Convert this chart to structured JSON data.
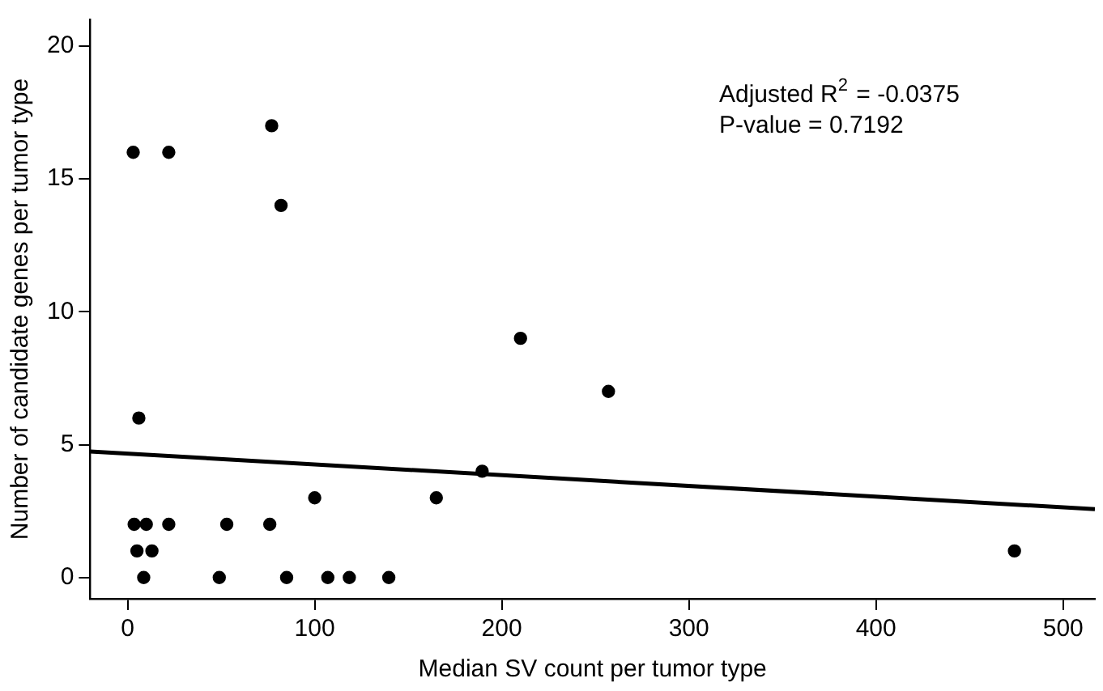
{
  "chart_data": {
    "type": "scatter",
    "xlabel": "Median SV count per tumor type",
    "ylabel": "Number of candidate genes per tumor type",
    "annotations": [
      "Adjusted R$^{2}$ = -0.0375",
      "P-value = 0.7192"
    ],
    "series": [
      {
        "color": "#000000",
        "x": [
          3,
          22,
          77,
          82,
          210,
          257,
          6,
          189.5,
          100,
          165,
          3.5,
          10,
          22,
          53,
          76,
          5,
          13,
          8.6,
          49,
          85,
          107,
          118.5,
          139.6,
          474
        ],
        "values": [
          16,
          16,
          17,
          14,
          9,
          7,
          6,
          4,
          3,
          3,
          2,
          2,
          2,
          2,
          2,
          1,
          1,
          0,
          0,
          0,
          0,
          0,
          0,
          1
        ]
      },
      {
        "type": "line",
        "marker": "none",
        "color": "#000000",
        "x": [
          -20,
          517
        ],
        "values": [
          4.74,
          2.57
        ]
      }
    ],
    "marker": "circle",
    "legend": false,
    "xlim": [
      -20,
      517
    ],
    "ylim": [
      -0.8,
      21
    ],
    "xticks": [
      0,
      100,
      200,
      300,
      400,
      500
    ],
    "yticks": [
      0,
      5,
      10,
      15,
      20
    ]
  }
}
